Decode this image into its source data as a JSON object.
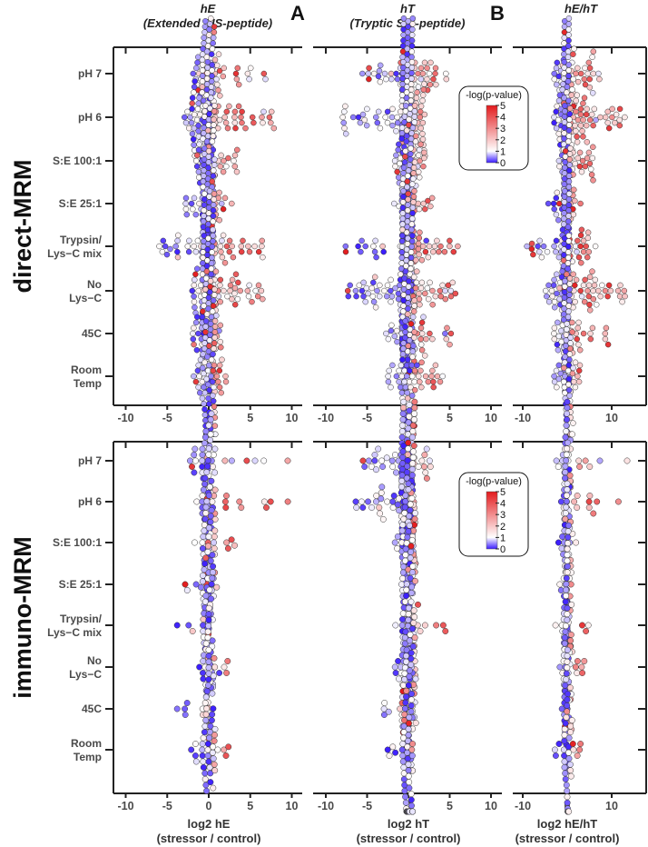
{
  "chart_data": {
    "type": "scatter",
    "subtype": "beeswarm",
    "panel_letters": [
      "A",
      "B"
    ],
    "sections": [
      "direct-MRM",
      "immuno-MRM"
    ],
    "columns": [
      {
        "title": "hE",
        "subtitle": "(Extended SIS-peptide)",
        "xlabel": "log2 hE",
        "xlabel2": "(stressor / control)",
        "xlim": [
          -11.5,
          11.5
        ],
        "ticks": [
          -10,
          -5,
          0,
          5,
          10
        ]
      },
      {
        "title": "hT",
        "subtitle": "(Tryptic SIS-peptide)",
        "xlabel": "log2 hT",
        "xlabel2": "(stressor / control)",
        "xlim": [
          -11.5,
          11.5
        ],
        "ticks": [
          -10,
          -5,
          0,
          5,
          10
        ]
      },
      {
        "title": "hE/hT",
        "subtitle": "",
        "xlabel": "log2 hE/hT",
        "xlabel2": "(stressor / control)",
        "xlim": [
          -12,
          18
        ],
        "ticks": [
          -10,
          0,
          10
        ]
      }
    ],
    "row_labels": [
      [
        "pH 7"
      ],
      [
        "pH 6"
      ],
      [
        "S:E 100:1"
      ],
      [
        "S:E 25:1"
      ],
      [
        "Trypsin/",
        "Lys−C mix"
      ],
      [
        "No",
        "Lys−C"
      ],
      [
        "45C"
      ],
      [
        "Room",
        "Temp"
      ]
    ],
    "legend": {
      "title": "-log(p-value)",
      "ticks": [
        "0",
        "1",
        "2",
        "3",
        "4",
        "5"
      ],
      "colors": {
        "low": "#3a1cff",
        "mid": "#ffffff",
        "high": "#e31a1c"
      }
    },
    "distributions_note": "per row: [min, max, n] approximate log2 ratio ranges",
    "series": {
      "direct-MRM": [
        [
          [
            -2,
            7,
            120
          ],
          [
            -3,
            8,
            250
          ],
          [
            -1.5,
            3.5,
            130
          ],
          [
            -3,
            3,
            110
          ],
          [
            -6,
            6.5,
            140
          ],
          [
            -2,
            6.5,
            200
          ],
          [
            -2,
            1.5,
            110
          ],
          [
            -2,
            3,
            100
          ]
        ],
        [
          [
            -6,
            5,
            150
          ],
          [
            -8,
            2,
            250
          ],
          [
            -2,
            2,
            110
          ],
          [
            -2,
            3,
            80
          ],
          [
            -8,
            6,
            150
          ],
          [
            -8,
            6,
            200
          ],
          [
            -3,
            6,
            110
          ],
          [
            -3,
            5,
            100
          ]
        ],
        [
          [
            -3,
            8,
            150
          ],
          [
            -3,
            14,
            250
          ],
          [
            -2,
            6,
            120
          ],
          [
            -5,
            3,
            100
          ],
          [
            -10,
            7,
            140
          ],
          [
            -5,
            13,
            190
          ],
          [
            -3,
            10,
            100
          ],
          [
            -3,
            3,
            90
          ]
        ]
      ],
      "immuno-MRM": [
        [
          [
            -3,
            10,
            45
          ],
          [
            -3,
            10,
            45
          ],
          [
            -3,
            3.5,
            40
          ],
          [
            -3,
            1,
            35
          ],
          [
            -5,
            0.5,
            35
          ],
          [
            -3,
            3.5,
            40
          ],
          [
            -4,
            0,
            35
          ],
          [
            -3,
            2.5,
            45
          ]
        ],
        [
          [
            -6,
            3,
            120
          ],
          [
            -7,
            1,
            150
          ],
          [
            -2,
            1,
            60
          ],
          [
            -1,
            0.5,
            50
          ],
          [
            -2,
            7,
            60
          ],
          [
            -2,
            1,
            60
          ],
          [
            -3,
            0.5,
            60
          ],
          [
            -3,
            0.5,
            70
          ]
        ],
        [
          [
            -3,
            16,
            40
          ],
          [
            -3,
            16,
            40
          ],
          [
            -2,
            3,
            40
          ],
          [
            -3,
            1,
            35
          ],
          [
            -3,
            5,
            35
          ],
          [
            -3,
            4,
            40
          ],
          [
            -2,
            1,
            35
          ],
          [
            -3,
            3,
            45
          ]
        ]
      ]
    }
  }
}
